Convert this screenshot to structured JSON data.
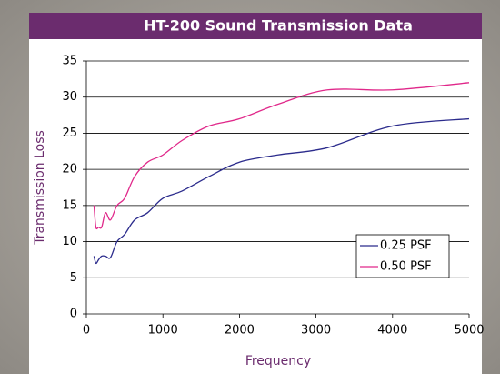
{
  "chart_data": {
    "type": "line",
    "title": "HT-200 Sound Transmission Data",
    "x_label": "Frequency",
    "y_label": "Transmission Loss",
    "x": [
      100,
      125,
      160,
      200,
      250,
      315,
      400,
      500,
      630,
      800,
      1000,
      1250,
      1600,
      2000,
      2500,
      3150,
      4000,
      5000
    ],
    "series": [
      {
        "name": "0.25 PSF",
        "color": "#2b2b8c",
        "values": [
          8,
          7,
          7.5,
          8,
          8,
          7.8,
          10,
          11,
          13,
          14,
          16,
          17,
          19,
          21,
          22,
          23,
          26,
          27
        ]
      },
      {
        "name": "0.50 PSF",
        "color": "#e0288a",
        "values": [
          15,
          12,
          12,
          12,
          14,
          13,
          15,
          16,
          19,
          21,
          22,
          24,
          26,
          27,
          29,
          31,
          31,
          32
        ]
      }
    ],
    "xlim": [
      0,
      5000
    ],
    "xticks": [
      0,
      1000,
      2000,
      3000,
      4000,
      5000
    ],
    "ylim": [
      0,
      35
    ],
    "yticks": [
      0,
      5,
      10,
      15,
      20,
      25,
      30,
      35
    ],
    "grid": true,
    "legend_position": "lower right"
  }
}
